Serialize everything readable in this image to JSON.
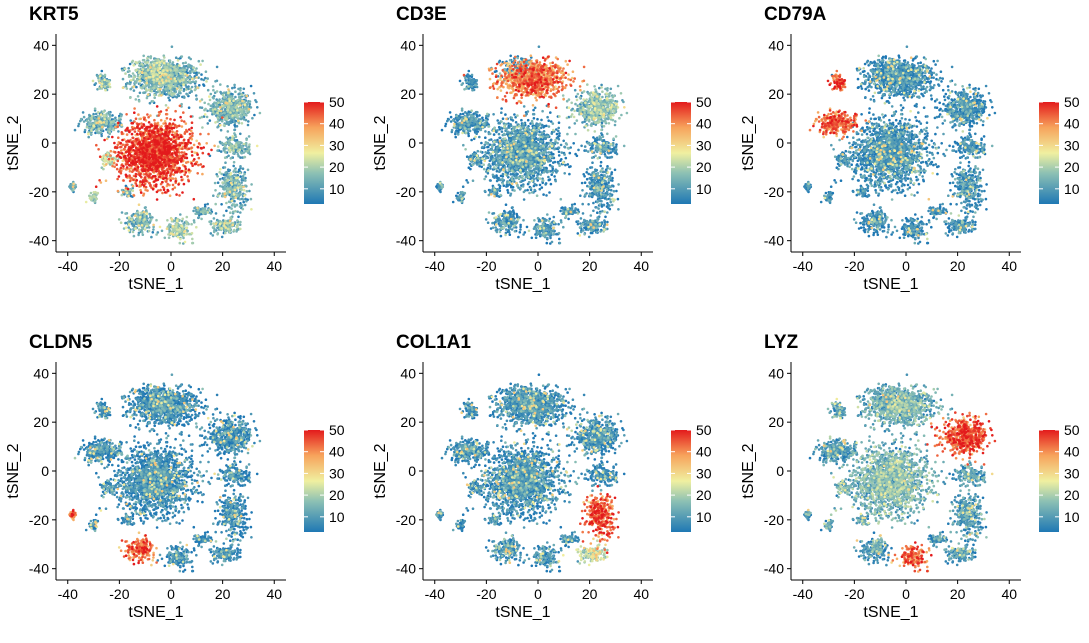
{
  "chart_data": [
    {
      "type": "scatter",
      "title": "KRT5",
      "xlabel": "tSNE_1",
      "ylabel": "tSNE_2",
      "xlim": [
        -43,
        43
      ],
      "ylim": [
        -43,
        43
      ],
      "xticks": [
        -40,
        -20,
        0,
        20,
        40
      ],
      "yticks": [
        -40,
        -20,
        0,
        20,
        40
      ],
      "colorbar": {
        "ticks": [
          10,
          20,
          30,
          40,
          50
        ],
        "range": [
          3,
          50
        ]
      },
      "highlight": [
        {
          "cluster": "center",
          "level": 0.88
        },
        {
          "cluster": "top_right",
          "level": 0.3
        },
        {
          "cluster": "left_mid",
          "level": 0.35
        },
        {
          "cluster": "bot_right",
          "level": 0.25
        },
        {
          "cluster": "bot_center",
          "level": 0.3
        },
        {
          "cluster": "bot_left",
          "level": 0.28
        }
      ],
      "baseline": 0.18
    },
    {
      "type": "scatter",
      "title": "CD3E",
      "xlabel": "tSNE_1",
      "ylabel": "tSNE_2",
      "xlim": [
        -43,
        43
      ],
      "ylim": [
        -43,
        43
      ],
      "xticks": [
        -40,
        -20,
        0,
        20,
        40
      ],
      "yticks": [
        -40,
        -20,
        0,
        20,
        40
      ],
      "colorbar": {
        "ticks": [
          10,
          20,
          30,
          40,
          50
        ],
        "range": [
          3,
          50
        ]
      },
      "highlight": [
        {
          "cluster": "top_center",
          "level": 0.78
        },
        {
          "cluster": "right_upper",
          "level": 0.25
        }
      ],
      "baseline": 0.06
    },
    {
      "type": "scatter",
      "title": "CD79A",
      "xlabel": "tSNE_1",
      "ylabel": "tSNE_2",
      "xlim": [
        -43,
        43
      ],
      "ylim": [
        -43,
        43
      ],
      "xticks": [
        -40,
        -20,
        0,
        20,
        40
      ],
      "yticks": [
        -40,
        -20,
        0,
        20,
        40
      ],
      "colorbar": {
        "ticks": [
          10,
          20,
          30,
          40,
          50
        ],
        "range": [
          3,
          50
        ]
      },
      "highlight": [
        {
          "cluster": "left_upper",
          "level": 0.82
        },
        {
          "cluster": "left_small_top",
          "level": 0.85
        }
      ],
      "baseline": 0.04
    },
    {
      "type": "scatter",
      "title": "CLDN5",
      "xlabel": "tSNE_1",
      "ylabel": "tSNE_2",
      "xlim": [
        -43,
        43
      ],
      "ylim": [
        -43,
        43
      ],
      "xticks": [
        -40,
        -20,
        0,
        20,
        40
      ],
      "yticks": [
        -40,
        -20,
        0,
        20,
        40
      ],
      "colorbar": {
        "ticks": [
          10,
          20,
          30,
          40,
          50
        ],
        "range": [
          3,
          50
        ]
      },
      "highlight": [
        {
          "cluster": "bot_left_center",
          "level": 0.82
        },
        {
          "cluster": "left_isolated",
          "level": 0.8
        }
      ],
      "baseline": 0.04
    },
    {
      "type": "scatter",
      "title": "COL1A1",
      "xlabel": "tSNE_1",
      "ylabel": "tSNE_2",
      "xlim": [
        -43,
        43
      ],
      "ylim": [
        -43,
        43
      ],
      "xticks": [
        -40,
        -20,
        0,
        20,
        40
      ],
      "yticks": [
        -40,
        -20,
        0,
        20,
        40
      ],
      "colorbar": {
        "ticks": [
          10,
          20,
          30,
          40,
          50
        ],
        "range": [
          3,
          50
        ]
      },
      "highlight": [
        {
          "cluster": "right_lower",
          "level": 0.85
        },
        {
          "cluster": "bot_right",
          "level": 0.4
        }
      ],
      "baseline": 0.05
    },
    {
      "type": "scatter",
      "title": "LYZ",
      "xlabel": "tSNE_1",
      "ylabel": "tSNE_2",
      "xlim": [
        -43,
        43
      ],
      "ylim": [
        -43,
        43
      ],
      "xticks": [
        -40,
        -20,
        0,
        20,
        40
      ],
      "yticks": [
        -40,
        -20,
        0,
        20,
        40
      ],
      "colorbar": {
        "ticks": [
          10,
          20,
          30,
          40,
          50
        ],
        "range": [
          3,
          50
        ]
      },
      "highlight": [
        {
          "cluster": "right_upper",
          "level": 0.85
        },
        {
          "cluster": "bot_center",
          "level": 0.82
        },
        {
          "cluster": "center",
          "level": 0.22
        },
        {
          "cluster": "top_center",
          "level": 0.2
        },
        {
          "cluster": "left_mid",
          "level": 0.25
        }
      ],
      "baseline": 0.1
    }
  ],
  "embedding_clusters": [
    {
      "name": "top_center",
      "cx": -2,
      "cy": 26,
      "sx": 12,
      "sy": 7,
      "n": 850
    },
    {
      "name": "top_right",
      "cx": -6,
      "cy": 30,
      "sx": 7,
      "sy": 5,
      "n": 200
    },
    {
      "name": "center",
      "cx": -6,
      "cy": -4,
      "sx": 13,
      "sy": 12,
      "n": 1700
    },
    {
      "name": "right_upper",
      "cx": 23,
      "cy": 14,
      "sx": 8,
      "sy": 6,
      "n": 500
    },
    {
      "name": "right_lower",
      "cx": 24,
      "cy": -18,
      "sx": 5,
      "sy": 8,
      "n": 300
    },
    {
      "name": "right_mid",
      "cx": 25,
      "cy": -2,
      "sx": 5,
      "sy": 4,
      "n": 160
    },
    {
      "name": "left_upper",
      "cx": -27,
      "cy": 8,
      "sx": 7,
      "sy": 4,
      "n": 280
    },
    {
      "name": "left_small_top",
      "cx": -26,
      "cy": 25,
      "sx": 2.5,
      "sy": 3,
      "n": 70
    },
    {
      "name": "left_mid",
      "cx": -24,
      "cy": -7,
      "sx": 3,
      "sy": 3,
      "n": 60
    },
    {
      "name": "left_isolated",
      "cx": -38,
      "cy": -18,
      "sx": 1.2,
      "sy": 2,
      "n": 30
    },
    {
      "name": "bot_left",
      "cx": -30,
      "cy": -22,
      "sx": 2,
      "sy": 2,
      "n": 40
    },
    {
      "name": "bot_left_center",
      "cx": -12,
      "cy": -32,
      "sx": 5,
      "sy": 4,
      "n": 180
    },
    {
      "name": "bot_center",
      "cx": 3,
      "cy": -35,
      "sx": 5,
      "sy": 4,
      "n": 150
    },
    {
      "name": "bot_right",
      "cx": 21,
      "cy": -34,
      "sx": 5,
      "sy": 3,
      "n": 140
    },
    {
      "name": "bot_far_right",
      "cx": 12,
      "cy": -28,
      "sx": 3,
      "sy": 2,
      "n": 60
    },
    {
      "name": "left_small_bot",
      "cx": -17,
      "cy": -20,
      "sx": 2,
      "sy": 2,
      "n": 40
    }
  ],
  "colors": {
    "low": "#1f78b4",
    "mid_low": "#8cc0b4",
    "mid": "#f0f0a0",
    "mid_high": "#f7a35c",
    "high": "#e31a1c"
  }
}
